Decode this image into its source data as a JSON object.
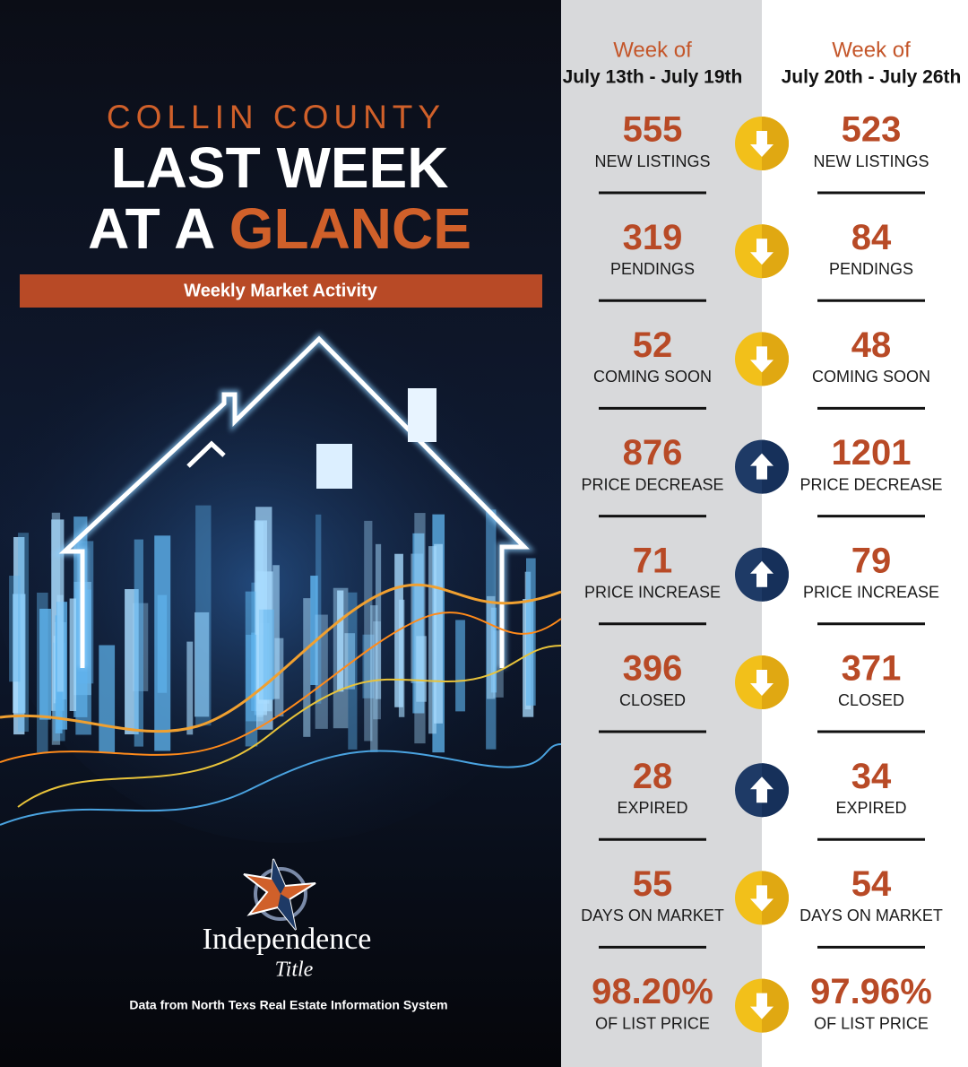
{
  "header": {
    "kicker": "COLLIN COUNTY",
    "title_line1": "LAST WEEK",
    "title_line2_prefix": "AT A",
    "title_line2_highlight": "GLANCE",
    "banner": "Weekly Market Activity"
  },
  "brand": {
    "name": "Independence",
    "script": "Title",
    "source": "Data from North Texs Real Estate Information System"
  },
  "weeks": [
    {
      "label": "Week of",
      "range": "July 13th - July 19th"
    },
    {
      "label": "Week of",
      "range": "July 20th - July 26th"
    }
  ],
  "metrics": [
    {
      "label": "NEW LISTINGS",
      "previous": "555",
      "current": "523",
      "trend": "down"
    },
    {
      "label": "PENDINGS",
      "previous": "319",
      "current": "84",
      "trend": "down"
    },
    {
      "label": "COMING SOON",
      "previous": "52",
      "current": "48",
      "trend": "down"
    },
    {
      "label": "PRICE DECREASE",
      "previous": "876",
      "current": "1201",
      "trend": "up"
    },
    {
      "label": "PRICE INCREASE",
      "previous": "71",
      "current": "79",
      "trend": "up"
    },
    {
      "label": "CLOSED",
      "previous": "396",
      "current": "371",
      "trend": "down"
    },
    {
      "label": "EXPIRED",
      "previous": "28",
      "current": "34",
      "trend": "up"
    },
    {
      "label": "DAYS ON MARKET",
      "previous": "55",
      "current": "54",
      "trend": "down"
    },
    {
      "label": "OF LIST PRICE",
      "previous": "98.20%",
      "current": "97.96%",
      "trend": "down"
    }
  ]
}
